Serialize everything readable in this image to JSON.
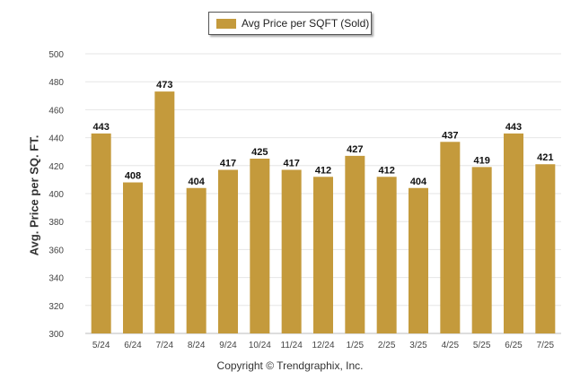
{
  "legend": {
    "label": "Avg Price per SQFT (Sold)"
  },
  "footer": {
    "copyright": "Copyright © Trendgraphix, Inc."
  },
  "colors": {
    "bar": "#c49a3c",
    "grid": "#e6e6e6",
    "axis": "#bbbbbb"
  },
  "chart_data": {
    "type": "bar",
    "categories": [
      "5/24",
      "6/24",
      "7/24",
      "8/24",
      "9/24",
      "10/24",
      "11/24",
      "12/24",
      "1/25",
      "2/25",
      "3/25",
      "4/25",
      "5/25",
      "6/25",
      "7/25"
    ],
    "series": [
      {
        "name": "Avg Price per SQFT (Sold)",
        "values": [
          443,
          408,
          473,
          404,
          417,
          425,
          417,
          412,
          427,
          412,
          404,
          437,
          419,
          443,
          421
        ]
      }
    ],
    "ylabel": "Avg. Price per SQ. FT.",
    "xlabel": "",
    "ylim": [
      300,
      500
    ],
    "yticks": [
      300,
      320,
      340,
      360,
      380,
      400,
      420,
      440,
      460,
      480,
      500
    ],
    "grid": true,
    "legend_position": "top-center",
    "data_labels": true
  }
}
